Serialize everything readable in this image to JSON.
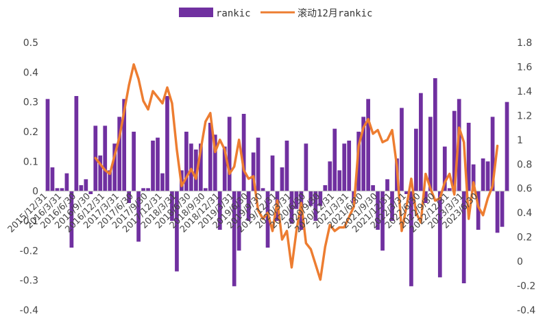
{
  "legend": {
    "bar_label": "rankic",
    "line_label": "滚动12月rankic"
  },
  "colors": {
    "bar": "#7030A0",
    "line": "#ED7D31",
    "axis": "#BFBFBF",
    "text": "#444444"
  },
  "chart_data": {
    "type": "bar",
    "legend_position": "top",
    "grid": false,
    "y_left": {
      "min": -0.4,
      "max": 0.5,
      "step": 0.1,
      "tick_labels": [
        "-0.4",
        "-0.3",
        "-0.2",
        "-0.1",
        "0",
        "0.1",
        "0.2",
        "0.3",
        "0.4",
        "0.5"
      ]
    },
    "y_right": {
      "min": -0.4,
      "max": 1.8,
      "step": 0.2,
      "tick_labels": [
        "-0.4",
        "-0.2",
        "0",
        "0.2",
        "0.4",
        "0.6",
        "0.8",
        "1",
        "1.2",
        "1.4",
        "1.6",
        "1.8"
      ]
    },
    "x_tick_labels": [
      "2015/12/31",
      "2016/3/31",
      "2016/6/30",
      "2016/9/30",
      "2016/12/31",
      "2017/3/31",
      "2017/6/30",
      "2017/9/30",
      "2017/12/31",
      "2018/3/31",
      "2018/6/30",
      "2018/9/30",
      "2018/12/31",
      "2019/3/31",
      "2019/6/30",
      "2019/9/30",
      "2019/12/31",
      "2020/3/31",
      "2020/6/30",
      "2020/9/30",
      "2020/12/31",
      "2021/3/31",
      "2021/6/30",
      "2021/9/30",
      "2021/12/31",
      "2022/3/31",
      "2022/6/30",
      "2022/9/30",
      "2022/12/31",
      "2023/3/31",
      "2023/6/30"
    ],
    "series": [
      {
        "name": "rankic",
        "axis": "left",
        "type": "bar",
        "values": [
          0.31,
          0.08,
          0.01,
          0.01,
          0.06,
          -0.19,
          0.32,
          0.02,
          0.04,
          -0.01,
          0.22,
          0.12,
          0.22,
          0.07,
          0.16,
          0.25,
          0.31,
          -0.04,
          0.2,
          -0.17,
          0.01,
          0.01,
          0.17,
          0.18,
          0.06,
          0.32,
          -0.1,
          -0.27,
          0.07,
          0.2,
          0.16,
          0.14,
          0.16,
          0.01,
          0.23,
          0.19,
          -0.13,
          0.15,
          0.25,
          -0.32,
          -0.2,
          0.26,
          -0.1,
          0.13,
          0.18,
          0.01,
          -0.19,
          0.12,
          -0.1,
          0.08,
          0.17,
          -0.11,
          -0.06,
          -0.13,
          0.16,
          -0.05,
          -0.1,
          -0.05,
          0.02,
          0.1,
          0.21,
          0.07,
          0.16,
          0.17,
          -0.04,
          0.2,
          0.25,
          0.31,
          0.02,
          -0.13,
          -0.2,
          0.04,
          -0.1,
          0.11,
          0.28,
          -0.01,
          -0.32,
          0.21,
          0.33,
          -0.04,
          0.25,
          0.38,
          -0.29,
          0.15,
          0.01,
          0.27,
          0.31,
          -0.31,
          0.23,
          0.09,
          -0.13,
          0.11,
          0.1,
          0.25,
          -0.14,
          -0.12,
          0.3
        ]
      },
      {
        "name": "滚动12月rankic",
        "axis": "right",
        "type": "line",
        "points": [
          [
            10,
            0.85
          ],
          [
            12,
            0.75
          ],
          [
            13,
            0.72
          ],
          [
            15,
            1.02
          ],
          [
            17,
            1.45
          ],
          [
            18,
            1.62
          ],
          [
            19,
            1.5
          ],
          [
            20,
            1.32
          ],
          [
            21,
            1.25
          ],
          [
            22,
            1.4
          ],
          [
            24,
            1.3
          ],
          [
            25,
            1.43
          ],
          [
            26,
            1.3
          ],
          [
            27,
            0.92
          ],
          [
            28,
            0.62
          ],
          [
            30,
            0.76
          ],
          [
            31,
            0.68
          ],
          [
            32,
            0.92
          ],
          [
            33,
            1.15
          ],
          [
            34,
            1.22
          ],
          [
            35,
            0.9
          ],
          [
            36,
            1.0
          ],
          [
            37,
            0.92
          ],
          [
            38,
            0.72
          ],
          [
            39,
            0.78
          ],
          [
            40,
            1.0
          ],
          [
            41,
            0.75
          ],
          [
            42,
            0.68
          ],
          [
            43,
            0.7
          ],
          [
            44,
            0.42
          ],
          [
            45,
            0.35
          ],
          [
            46,
            0.4
          ],
          [
            47,
            0.25
          ],
          [
            48,
            0.5
          ],
          [
            49,
            0.18
          ],
          [
            50,
            0.25
          ],
          [
            51,
            -0.05
          ],
          [
            52,
            0.25
          ],
          [
            53,
            0.48
          ],
          [
            54,
            0.15
          ],
          [
            55,
            0.1
          ],
          [
            57,
            -0.15
          ],
          [
            58,
            0.12
          ],
          [
            59,
            0.3
          ],
          [
            60,
            0.25
          ],
          [
            61,
            0.28
          ],
          [
            62,
            0.28
          ],
          [
            64,
            0.45
          ],
          [
            65,
            0.95
          ],
          [
            66,
            1.1
          ],
          [
            67,
            1.17
          ],
          [
            68,
            1.05
          ],
          [
            69,
            1.08
          ],
          [
            70,
            0.98
          ],
          [
            71,
            1.0
          ],
          [
            72,
            1.08
          ],
          [
            73,
            0.78
          ],
          [
            74,
            0.25
          ],
          [
            75,
            0.45
          ],
          [
            76,
            0.68
          ],
          [
            77,
            0.4
          ],
          [
            78,
            0.32
          ],
          [
            79,
            0.72
          ],
          [
            80,
            0.6
          ],
          [
            81,
            0.5
          ],
          [
            82,
            0.52
          ],
          [
            83,
            0.65
          ],
          [
            84,
            0.72
          ],
          [
            85,
            0.55
          ],
          [
            86,
            1.1
          ],
          [
            87,
            0.98
          ],
          [
            88,
            0.35
          ],
          [
            89,
            0.65
          ],
          [
            90,
            0.45
          ],
          [
            91,
            0.38
          ],
          [
            92,
            0.52
          ],
          [
            93,
            0.62
          ],
          [
            94,
            0.95
          ]
        ]
      }
    ]
  }
}
